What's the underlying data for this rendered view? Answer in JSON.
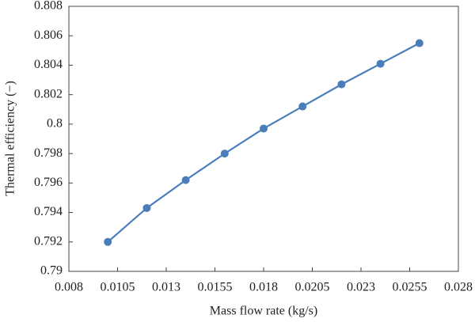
{
  "chart_data": {
    "type": "line",
    "x_label": "Mass flow rate (kg/s)",
    "y_label": "Thermal efficiency (−)",
    "x": [
      0.01,
      0.012,
      0.014,
      0.016,
      0.018,
      0.02,
      0.022,
      0.024,
      0.026
    ],
    "series": [
      {
        "color": "#4a7ebb",
        "values": [
          0.792,
          0.7943,
          0.7962,
          0.798,
          0.7997,
          0.8012,
          0.8027,
          0.8041,
          0.8055
        ]
      }
    ],
    "xlim": [
      0.008,
      0.028
    ],
    "xticks": [
      0.008,
      0.0105,
      0.013,
      0.0155,
      0.018,
      0.0205,
      0.023,
      0.0255,
      0.028
    ],
    "ylim": [
      0.79,
      0.808
    ],
    "yticks": [
      0.79,
      0.792,
      0.794,
      0.796,
      0.798,
      0.8,
      0.802,
      0.804,
      0.806,
      0.808
    ],
    "grid": false,
    "markers": true
  }
}
